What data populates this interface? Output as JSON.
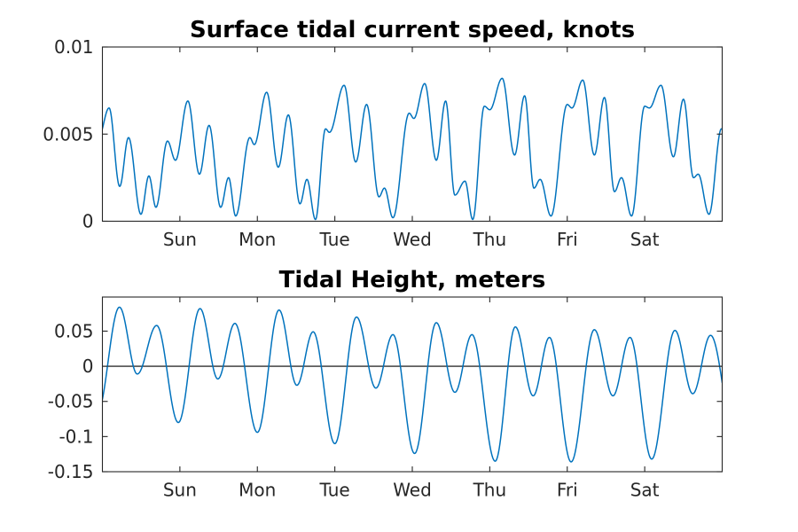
{
  "figure": {
    "background": "#ffffff",
    "description": "Two stacked time-series plots of tidal predictions over eight days"
  },
  "style": {
    "line_color": "#0072BD",
    "axis_color": "#262626",
    "tick_label_color": "#262626",
    "title_color": "#000000",
    "zero_line_color": "#000000"
  },
  "chart_data": [
    {
      "type": "line",
      "title": "Surface tidal current speed, knots",
      "xlabel": "",
      "ylabel": "",
      "x_unit": "days",
      "xlim": [
        0,
        8
      ],
      "ylim": [
        0,
        0.01
      ],
      "grid": false,
      "legend": null,
      "box": true,
      "xticks": [
        {
          "t": 1,
          "label": "Sun"
        },
        {
          "t": 2,
          "label": "Mon"
        },
        {
          "t": 3,
          "label": "Tue"
        },
        {
          "t": 4,
          "label": "Wed"
        },
        {
          "t": 5,
          "label": "Thu"
        },
        {
          "t": 6,
          "label": "Fri"
        },
        {
          "t": 7,
          "label": "Sat"
        }
      ],
      "yticks": [
        {
          "v": 0,
          "label": "0"
        },
        {
          "v": 0.005,
          "label": "0.005"
        },
        {
          "v": 0.01,
          "label": "0.01"
        }
      ],
      "interpolation": "cosine-through-extremes",
      "series_anchors": [
        [
          -0.05,
          0.0048
        ],
        [
          0.086,
          0.0065
        ],
        [
          0.223,
          0.002
        ],
        [
          0.337,
          0.0048
        ],
        [
          0.497,
          0.0004
        ],
        [
          0.6,
          0.0026
        ],
        [
          0.691,
          0.0008
        ],
        [
          0.84,
          0.0046
        ],
        [
          0.943,
          0.0035
        ],
        [
          1.103,
          0.0069
        ],
        [
          1.252,
          0.0027
        ],
        [
          1.377,
          0.0055
        ],
        [
          1.526,
          0.0008
        ],
        [
          1.629,
          0.0025
        ],
        [
          1.72,
          0.0003
        ],
        [
          1.903,
          0.0048
        ],
        [
          1.96,
          0.0044
        ],
        [
          2.12,
          0.0074
        ],
        [
          2.27,
          0.0031
        ],
        [
          2.4,
          0.0061
        ],
        [
          2.55,
          0.001
        ],
        [
          2.64,
          0.0024
        ],
        [
          2.75,
          0.0001
        ],
        [
          2.88,
          0.0053
        ],
        [
          2.93,
          0.0051
        ],
        [
          3.12,
          0.0078
        ],
        [
          3.27,
          0.0034
        ],
        [
          3.41,
          0.0067
        ],
        [
          3.57,
          0.0014
        ],
        [
          3.64,
          0.0019
        ],
        [
          3.75,
          0.0002
        ],
        [
          3.96,
          0.0062
        ],
        [
          4.02,
          0.0059
        ],
        [
          4.16,
          0.0079
        ],
        [
          4.31,
          0.0035
        ],
        [
          4.43,
          0.0069
        ],
        [
          4.55,
          0.0015
        ],
        [
          4.68,
          0.0023
        ],
        [
          4.78,
          0.0001
        ],
        [
          4.93,
          0.0066
        ],
        [
          5.0,
          0.0064
        ],
        [
          5.16,
          0.0082
        ],
        [
          5.32,
          0.0038
        ],
        [
          5.45,
          0.0072
        ],
        [
          5.57,
          0.0019
        ],
        [
          5.65,
          0.0024
        ],
        [
          5.79,
          0.0003
        ],
        [
          6.0,
          0.0067
        ],
        [
          6.06,
          0.0065
        ],
        [
          6.2,
          0.0081
        ],
        [
          6.35,
          0.0038
        ],
        [
          6.48,
          0.0071
        ],
        [
          6.61,
          0.0017
        ],
        [
          6.7,
          0.0025
        ],
        [
          6.83,
          0.0003
        ],
        [
          7.0,
          0.0066
        ],
        [
          7.06,
          0.0065
        ],
        [
          7.21,
          0.0078
        ],
        [
          7.37,
          0.0037
        ],
        [
          7.5,
          0.007
        ],
        [
          7.63,
          0.0025
        ],
        [
          7.69,
          0.0027
        ],
        [
          7.83,
          0.0004
        ],
        [
          7.99,
          0.0053
        ],
        [
          8.2,
          0.007
        ]
      ],
      "zero_line": false
    },
    {
      "type": "line",
      "title": "Tidal Height, meters",
      "xlabel": "",
      "ylabel": "",
      "x_unit": "days",
      "xlim": [
        0,
        8
      ],
      "ylim": [
        -0.15,
        0.0985
      ],
      "grid": false,
      "legend": null,
      "box": true,
      "xticks": [
        {
          "t": 1,
          "label": "Sun"
        },
        {
          "t": 2,
          "label": "Mon"
        },
        {
          "t": 3,
          "label": "Tue"
        },
        {
          "t": 4,
          "label": "Wed"
        },
        {
          "t": 5,
          "label": "Thu"
        },
        {
          "t": 6,
          "label": "Fri"
        },
        {
          "t": 7,
          "label": "Sat"
        }
      ],
      "yticks": [
        {
          "v": 0.05,
          "label": "0.05"
        },
        {
          "v": 0,
          "label": "0"
        },
        {
          "v": -0.05,
          "label": "-0.05"
        },
        {
          "v": -0.1,
          "label": "-0.1"
        },
        {
          "v": -0.15,
          "label": "-0.15"
        }
      ],
      "interpolation": "cosine-through-extremes",
      "series_anchors": [
        [
          -0.07,
          -0.068
        ],
        [
          0.22,
          0.084
        ],
        [
          0.45,
          -0.011
        ],
        [
          0.7,
          0.058
        ],
        [
          0.98,
          -0.08
        ],
        [
          1.26,
          0.082
        ],
        [
          1.49,
          -0.018
        ],
        [
          1.71,
          0.061
        ],
        [
          2.0,
          -0.094
        ],
        [
          2.28,
          0.08
        ],
        [
          2.51,
          -0.027
        ],
        [
          2.72,
          0.049
        ],
        [
          3.0,
          -0.11
        ],
        [
          3.28,
          0.07
        ],
        [
          3.53,
          -0.031
        ],
        [
          3.75,
          0.045
        ],
        [
          4.03,
          -0.124
        ],
        [
          4.31,
          0.062
        ],
        [
          4.55,
          -0.037
        ],
        [
          4.77,
          0.045
        ],
        [
          5.07,
          -0.135
        ],
        [
          5.33,
          0.056
        ],
        [
          5.56,
          -0.042
        ],
        [
          5.77,
          0.041
        ],
        [
          6.05,
          -0.136
        ],
        [
          6.35,
          0.052
        ],
        [
          6.59,
          -0.042
        ],
        [
          6.81,
          0.041
        ],
        [
          7.09,
          -0.132
        ],
        [
          7.39,
          0.051
        ],
        [
          7.62,
          -0.039
        ],
        [
          7.85,
          0.044
        ],
        [
          8.17,
          -0.105
        ]
      ],
      "zero_line": true
    }
  ]
}
